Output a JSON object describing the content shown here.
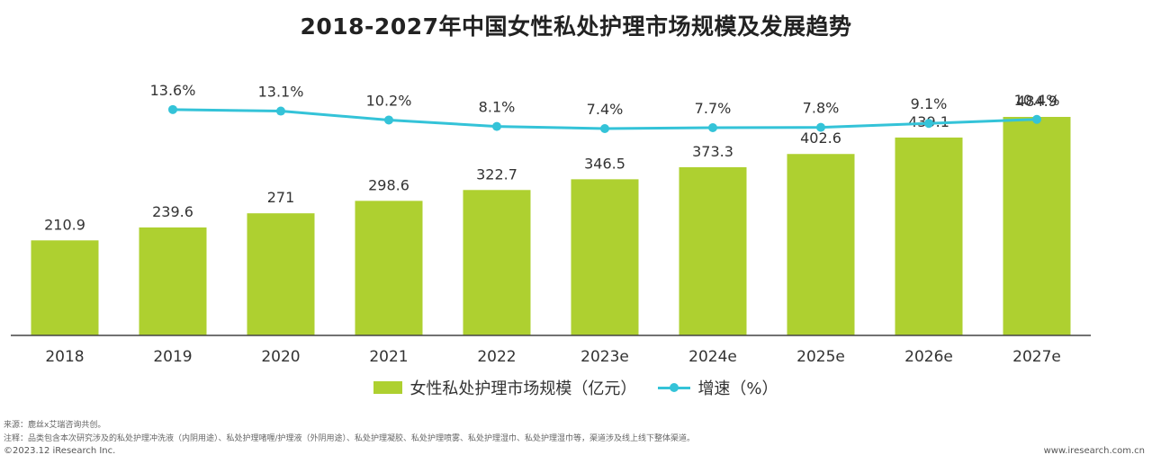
{
  "title": "2018-2027年中国女性私处护理市场规模及发展趋势",
  "chart_data": {
    "type": "bar",
    "categories": [
      "2018",
      "2019",
      "2020",
      "2021",
      "2022",
      "2023e",
      "2024e",
      "2025e",
      "2026e",
      "2027e"
    ],
    "series": [
      {
        "name": "女性私处护理市场规模（亿元）",
        "type": "bar",
        "values": [
          210.9,
          239.6,
          271,
          298.6,
          322.7,
          346.5,
          373.3,
          402.6,
          439.1,
          484.9
        ],
        "labels": [
          "210.9",
          "239.6",
          "271",
          "298.6",
          "322.7",
          "346.5",
          "373.3",
          "402.6",
          "439.1",
          "484.9"
        ]
      },
      {
        "name": "增速（%）",
        "type": "line",
        "values": [
          null,
          13.6,
          13.1,
          10.2,
          8.1,
          7.4,
          7.7,
          7.8,
          9.1,
          10.4
        ],
        "labels": [
          "",
          "13.6%",
          "13.1%",
          "10.2%",
          "8.1%",
          "7.4%",
          "7.7%",
          "7.8%",
          "9.1%",
          "10.4%"
        ]
      }
    ],
    "bar_ylim": [
      0,
      500
    ],
    "line_ylim": [
      -60,
      20
    ],
    "grid": false,
    "legend_position": "bottom",
    "colors": {
      "bar": "#aed030",
      "line": "#34c3d8",
      "axis": "#444444",
      "label": "#333333"
    }
  },
  "legend": {
    "bar_label": "女性私处护理市场规模（亿元）",
    "line_label": "增速（%）"
  },
  "footer": {
    "source": "来源：鹿丝x艾瑞咨询共创。",
    "note": "注释：品类包含本次研究涉及的私处护理冲洗液（内阴用途）、私处护理啫喱/护理液（外阴用途）、私处护理凝胶、私处护理喷雾、私处护理湿巾、私处护理湿巾等，渠道涉及线上线下整体渠道。",
    "copyright": "©2023.12 iResearch Inc.",
    "website": "www.iresearch.com.cn"
  }
}
